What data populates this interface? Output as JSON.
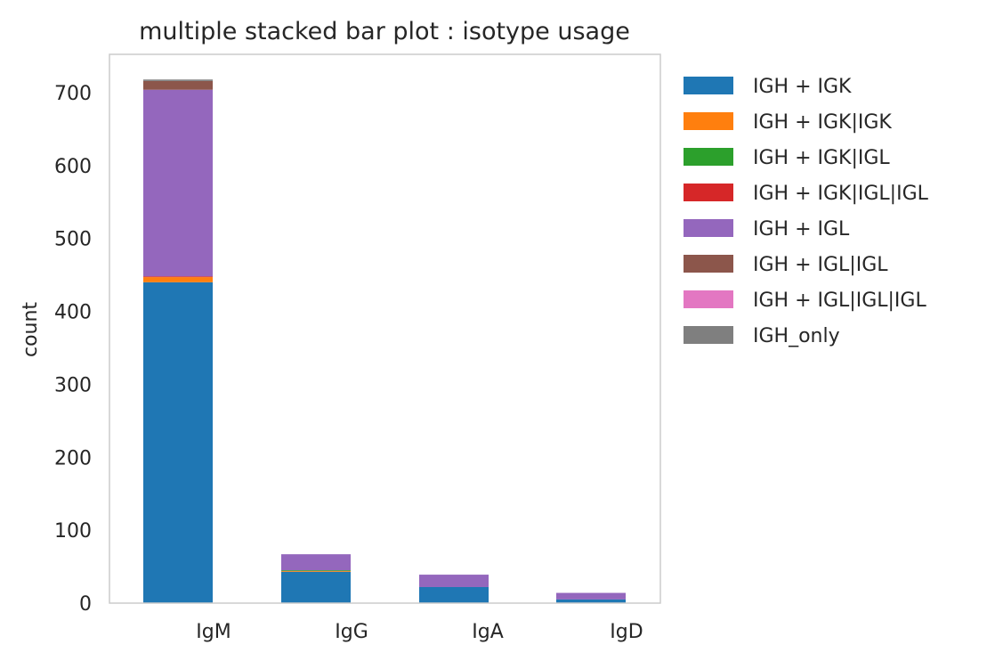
{
  "chart_data": {
    "type": "bar",
    "stacked": true,
    "title": "multiple stacked bar plot : isotype usage",
    "xlabel": "",
    "ylabel": "count",
    "ylim": [
      0,
      750
    ],
    "yticks": [
      0,
      100,
      200,
      300,
      400,
      500,
      600,
      700
    ],
    "grid": false,
    "legend_position": "outside-right",
    "categories": [
      "IgM",
      "IgG",
      "IgA",
      "IgD"
    ],
    "series": [
      {
        "name": "IGH + IGK",
        "color": "#1f77b4",
        "values": [
          440,
          43,
          22,
          5
        ]
      },
      {
        "name": "IGH + IGK|IGK",
        "color": "#ff7f0e",
        "values": [
          7,
          1,
          0,
          0
        ]
      },
      {
        "name": "IGH + IGK|IGL",
        "color": "#2ca02c",
        "values": [
          0,
          1,
          0,
          0
        ]
      },
      {
        "name": "IGH + IGK|IGL|IGL",
        "color": "#d62728",
        "values": [
          1,
          0,
          0,
          0
        ]
      },
      {
        "name": "IGH + IGL",
        "color": "#9467bd",
        "values": [
          256,
          22,
          17,
          9
        ]
      },
      {
        "name": "IGH + IGL|IGL",
        "color": "#8c564b",
        "values": [
          12,
          0,
          0,
          0
        ]
      },
      {
        "name": "IGH + IGL|IGL|IGL",
        "color": "#e377c2",
        "values": [
          0,
          0,
          0,
          0
        ]
      },
      {
        "name": "IGH_only",
        "color": "#7f7f7f",
        "values": [
          2,
          0,
          0,
          0
        ]
      }
    ]
  }
}
